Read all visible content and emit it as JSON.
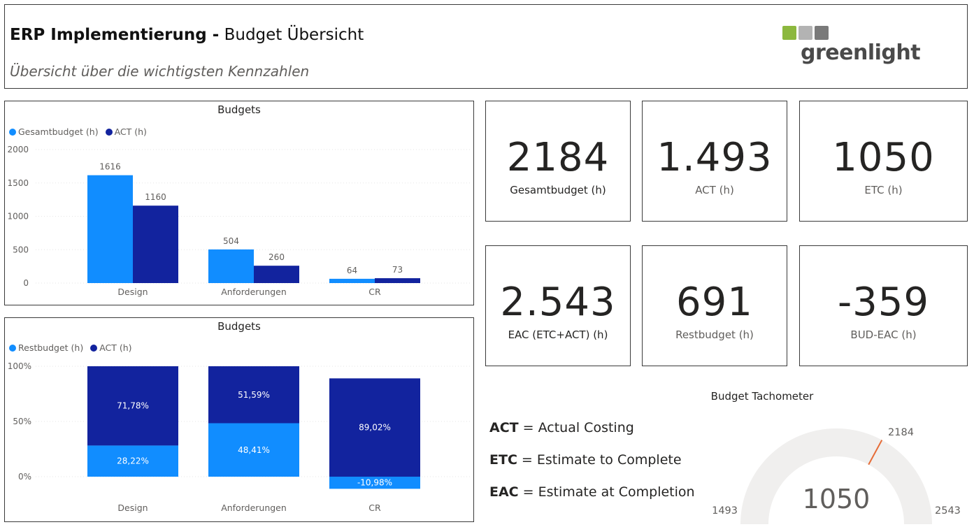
{
  "header": {
    "title_bold": "ERP Implementierung -",
    "title_rest": " Budget Übersicht",
    "subtitle": "Übersicht über die wichtigsten Kennzahlen",
    "logo_text": "greenlight",
    "logo_colors": [
      "#8cb83e",
      "#b3b3b3",
      "#7a7a7a"
    ]
  },
  "chart_data": [
    {
      "type": "bar",
      "title": "Budgets",
      "categories": [
        "Design",
        "Anforderungen",
        "CR"
      ],
      "series": [
        {
          "name": "Gesamtbudget (h)",
          "color": "#118dff",
          "values": [
            1616,
            504,
            64
          ]
        },
        {
          "name": "ACT (h)",
          "color": "#12239e",
          "values": [
            1160,
            260,
            73
          ]
        }
      ],
      "yticks": [
        "0",
        "500",
        "1000",
        "1500",
        "2000"
      ],
      "ylim": [
        0,
        2000
      ],
      "legend": "top-left",
      "grid": true
    },
    {
      "type": "bar",
      "stacked": "percent",
      "title": "Budgets",
      "categories": [
        "Design",
        "Anforderungen",
        "CR"
      ],
      "series": [
        {
          "name": "Restbudget (h)",
          "color": "#118dff",
          "values": [
            28.22,
            48.41,
            -10.98
          ],
          "labels": [
            "28,22%",
            "48,41%",
            "-10,98%"
          ]
        },
        {
          "name": "ACT (h)",
          "color": "#12239e",
          "values": [
            71.78,
            51.59,
            89.02
          ],
          "labels": [
            "71,78%",
            "51,59%",
            "89,02%"
          ]
        }
      ],
      "yticks": [
        "0%",
        "50%",
        "100%"
      ],
      "ylim": [
        0,
        100
      ],
      "legend": "top-left",
      "grid": true
    },
    {
      "type": "gauge",
      "title": "Budget Tachometer",
      "min": 1493,
      "max": 2543,
      "value": 1050,
      "target": 2184,
      "min_label": "1493",
      "max_label": "2543",
      "value_label": "1050",
      "target_label": "2184",
      "track_color": "#f0efee",
      "target_color": "#e66c37"
    }
  ],
  "cards": [
    {
      "value": "2184",
      "label": "Gesamtbudget (h)"
    },
    {
      "value": "1.493",
      "label": "ACT (h)"
    },
    {
      "value": "1050",
      "label": "ETC (h)"
    },
    {
      "value": "2.543",
      "label": "EAC (ETC+ACT) (h)"
    },
    {
      "value": "691",
      "label": "Restbudget (h)"
    },
    {
      "value": "-359",
      "label": "BUD-EAC (h)"
    }
  ],
  "glossary": [
    {
      "term": "ACT",
      "text": " = Actual Costing"
    },
    {
      "term": "ETC",
      "text": " = Estimate to Complete"
    },
    {
      "term": "EAC",
      "text": " = Estimate at Completion"
    }
  ]
}
